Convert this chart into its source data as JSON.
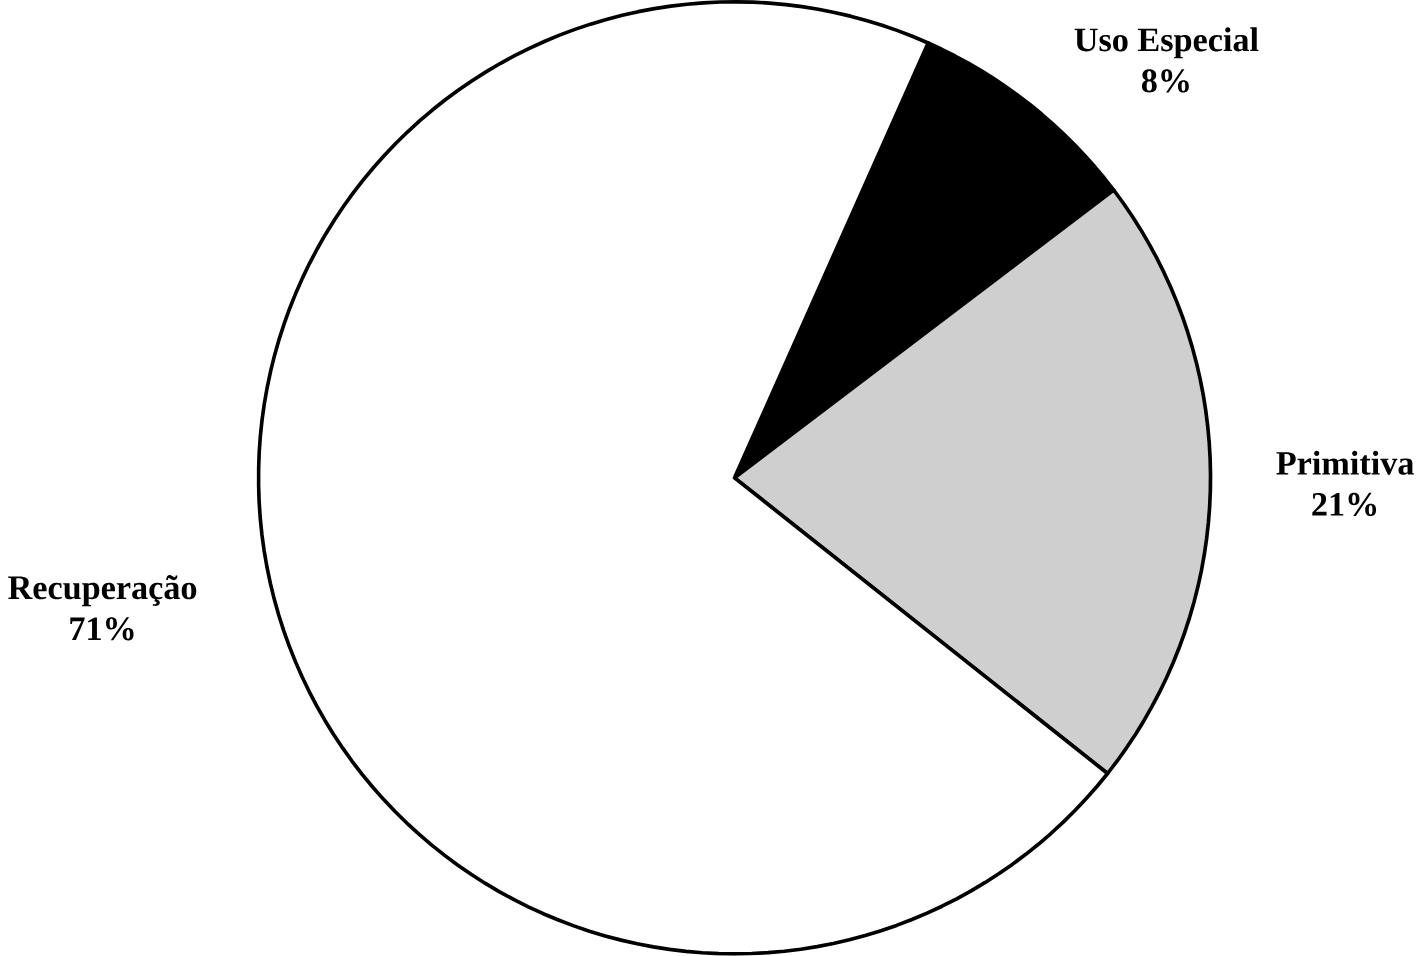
{
  "chart_data": {
    "type": "pie",
    "categories": [
      "Uso Especial",
      "Primitiva",
      "Recuperação"
    ],
    "values": [
      8,
      21,
      71
    ],
    "value_labels": [
      "8%",
      "21%",
      "71%"
    ],
    "colors": [
      "#000000",
      "#cfcfcf",
      "#ffffff"
    ]
  }
}
